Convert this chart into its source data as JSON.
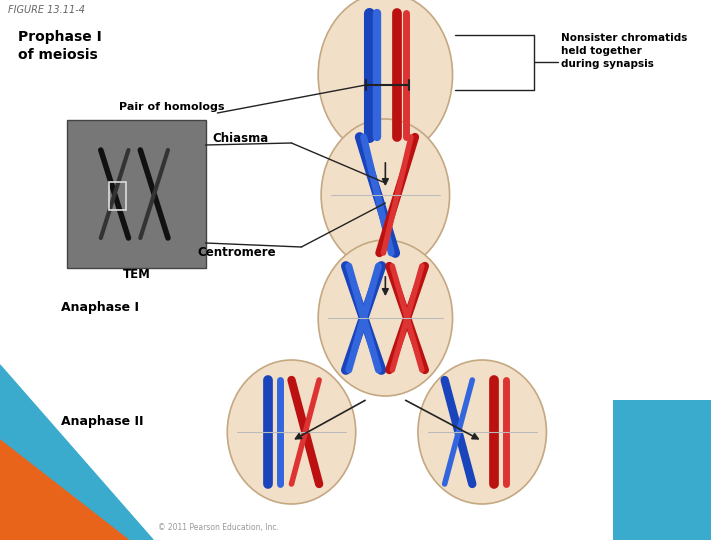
{
  "figure_label": "FIGURE 13.11-4",
  "title": "Prophase I\nof meiosis",
  "label_nonsister": "Nonsister chromatids\nheld together\nduring synapsis",
  "label_homologs": "Pair of homologs",
  "label_chiasma": "Chiasma",
  "label_centromere": "Centromere",
  "label_tem": "TEM",
  "label_anaphase1": "Anaphase I",
  "label_anaphase2": "Anaphase II",
  "copyright": "© 2011 Pearson Education, Inc.",
  "bg_white": "#ffffff",
  "bg_orange": "#e8641a",
  "bg_blue": "#3aabcc",
  "cell_fill": "#f2dfc8",
  "cell_edge": "#c4a882",
  "blue_chrom": "#1a44bb",
  "blue_chrom2": "#3366dd",
  "red_chrom": "#bb1111",
  "red_chrom2": "#dd3333",
  "arrow_color": "#222222",
  "label_color": "#000000",
  "title_color": "#000000",
  "figure_label_color": "#666666",
  "tem_bg": "#777777"
}
